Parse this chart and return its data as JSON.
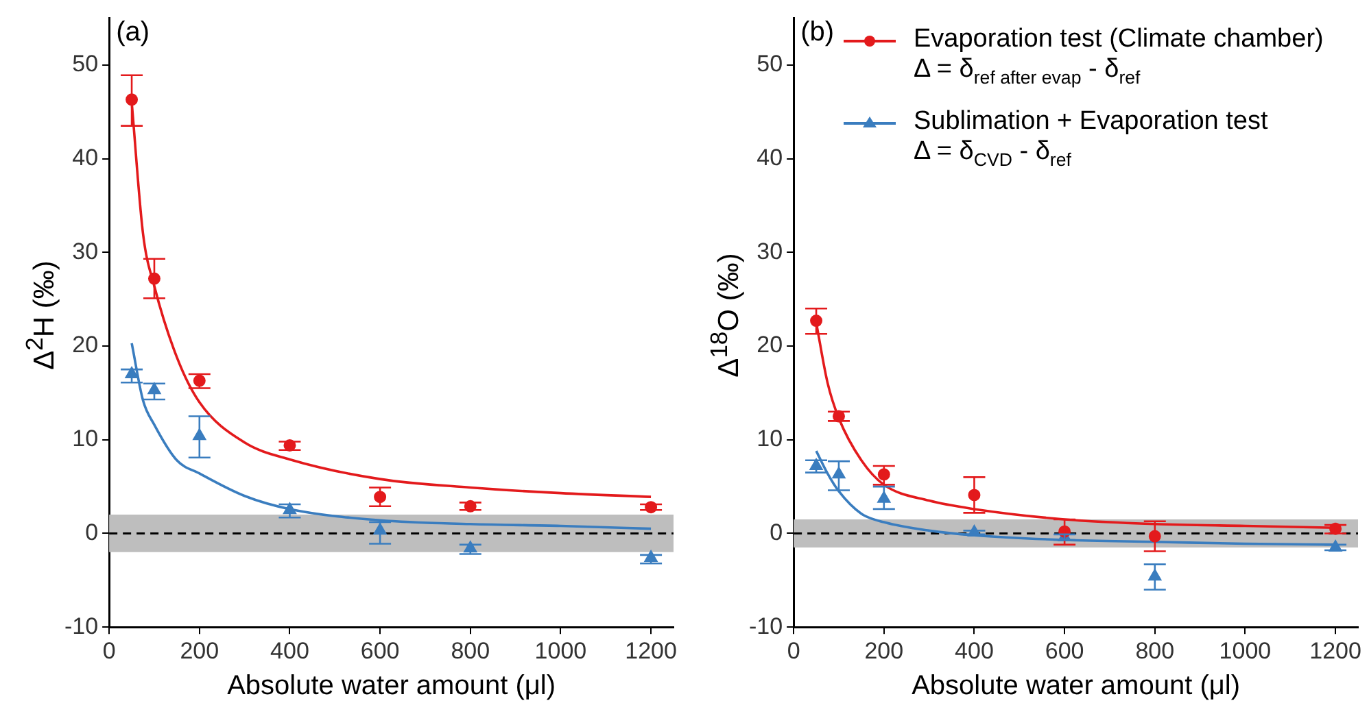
{
  "chart_data": [
    {
      "type": "scatter",
      "xlabel": "Absolute water amount (μl)",
      "ylabel": "Δ$^{2}$H (‰)",
      "xlim": [
        0,
        1250
      ],
      "ylim": [
        -10,
        55
      ],
      "xticks": [
        0,
        200,
        400,
        600,
        800,
        1000,
        1200
      ],
      "yticks": [
        -10,
        0,
        10,
        20,
        30,
        40,
        50
      ],
      "grid": false,
      "legend": false,
      "annotations": [
        "(a)"
      ],
      "ref_lines": [
        {
          "axis": "y",
          "value": 0,
          "color": "#000000",
          "line_style": "dashed"
        }
      ],
      "bands": [
        {
          "axis": "y",
          "from": -2,
          "to": 2,
          "color": "#bebebe"
        }
      ],
      "series": [
        {
          "type": "scatter",
          "color": "#e31a1c",
          "marker": "circle",
          "x": [
            50,
            100,
            200,
            400,
            600,
            800,
            1200
          ],
          "values": [
            46.3,
            27.2,
            16.3,
            9.4,
            3.9,
            2.9,
            2.8
          ],
          "errors": [
            [
              43.5,
              48.9
            ],
            [
              25.1,
              29.3
            ],
            [
              15.5,
              17.0
            ],
            [
              8.9,
              9.8
            ],
            [
              2.9,
              4.9
            ],
            [
              2.5,
              3.3
            ],
            [
              2.5,
              3.1
            ]
          ]
        },
        {
          "type": "scatter",
          "color": "#3a7dbf",
          "marker": "triangle",
          "x": [
            50,
            100,
            200,
            400,
            600,
            800,
            1200
          ],
          "values": [
            17.0,
            15.3,
            10.4,
            2.5,
            0.3,
            -1.6,
            -2.6
          ],
          "errors": [
            [
              16.1,
              17.5
            ],
            [
              14.3,
              16.0
            ],
            [
              8.1,
              12.5
            ],
            [
              1.7,
              3.1
            ],
            [
              -1.1,
              1.2
            ],
            [
              -2.2,
              -1.2
            ],
            [
              -3.2,
              -2.3
            ]
          ]
        },
        {
          "type": "line",
          "color": "#e31a1c",
          "marker": "none",
          "line_style": "solid",
          "x": [
            50,
            75,
            100,
            150,
            200,
            300,
            400,
            600,
            800,
            1000,
            1200
          ],
          "values": [
            46.0,
            32.0,
            26.4,
            18.8,
            14.0,
            9.7,
            7.9,
            5.8,
            4.9,
            4.3,
            3.9
          ]
        },
        {
          "type": "line",
          "color": "#3a7dbf",
          "marker": "none",
          "line_style": "solid",
          "x": [
            50,
            75,
            100,
            150,
            200,
            300,
            400,
            600,
            800,
            1000,
            1200
          ],
          "values": [
            20.3,
            14.2,
            11.6,
            7.8,
            6.4,
            4.0,
            2.6,
            1.4,
            1.0,
            0.8,
            0.5
          ]
        }
      ]
    },
    {
      "type": "scatter",
      "xlabel": "Absolute water amount (μl)",
      "ylabel": "Δ$^{18}$O (‰)",
      "xlim": [
        0,
        1250
      ],
      "ylim": [
        -10,
        55
      ],
      "xticks": [
        0,
        200,
        400,
        600,
        800,
        1000,
        1200
      ],
      "yticks": [
        -10,
        0,
        10,
        20,
        30,
        40,
        50
      ],
      "grid": false,
      "legend": "top left",
      "annotations": [
        "(b)"
      ],
      "ref_lines": [
        {
          "axis": "y",
          "value": 0,
          "color": "#000000",
          "line_style": "dashed"
        }
      ],
      "bands": [
        {
          "axis": "y",
          "from": -1.5,
          "to": 1.5,
          "color": "#bebebe"
        }
      ],
      "series": [
        {
          "type": "scatter",
          "name": "Evaporation test  (Climate chamber)\nΔ = δ$_{ref after evap}$ - δ$_{ref}$",
          "color": "#e31a1c",
          "marker": "circle",
          "x": [
            50,
            100,
            200,
            400,
            600,
            800,
            1200
          ],
          "values": [
            22.7,
            12.5,
            6.3,
            4.1,
            0.2,
            -0.3,
            0.5
          ],
          "errors": [
            [
              21.3,
              24.0
            ],
            [
              12.0,
              13.0
            ],
            [
              5.2,
              7.2
            ],
            [
              2.2,
              6.0
            ],
            [
              -1.2,
              1.5
            ],
            [
              -1.9,
              1.3
            ],
            [
              0.0,
              0.9
            ]
          ]
        },
        {
          "type": "scatter",
          "name": "Sublimation + Evaporation test\nΔ = δ$_{CVD}$ - δ$_{ref}$",
          "color": "#3a7dbf",
          "marker": "triangle",
          "x": [
            50,
            100,
            200,
            400,
            600,
            800,
            1200
          ],
          "values": [
            7.2,
            6.3,
            3.7,
            0.1,
            -0.4,
            -4.6,
            -1.5
          ],
          "errors": [
            [
              6.5,
              7.8
            ],
            [
              4.6,
              7.7
            ],
            [
              2.6,
              5.0
            ],
            [
              -0.1,
              0.3
            ],
            [
              -0.7,
              -0.1
            ],
            [
              -6.0,
              -3.3
            ],
            [
              -1.8,
              -1.2
            ]
          ]
        },
        {
          "type": "line",
          "color": "#e31a1c",
          "marker": "none",
          "line_style": "solid",
          "x": [
            50,
            75,
            100,
            150,
            200,
            300,
            400,
            600,
            800,
            1000,
            1200
          ],
          "values": [
            22.5,
            16.1,
            12.3,
            7.8,
            5.2,
            3.5,
            2.6,
            1.5,
            1.0,
            0.8,
            0.6
          ]
        },
        {
          "type": "line",
          "color": "#3a7dbf",
          "marker": "none",
          "line_style": "solid",
          "x": [
            50,
            75,
            100,
            150,
            200,
            300,
            400,
            600,
            800,
            1000,
            1200
          ],
          "values": [
            8.8,
            6.4,
            4.5,
            2.1,
            1.2,
            0.3,
            -0.2,
            -0.7,
            -0.9,
            -1.1,
            -1.2
          ]
        }
      ]
    }
  ]
}
